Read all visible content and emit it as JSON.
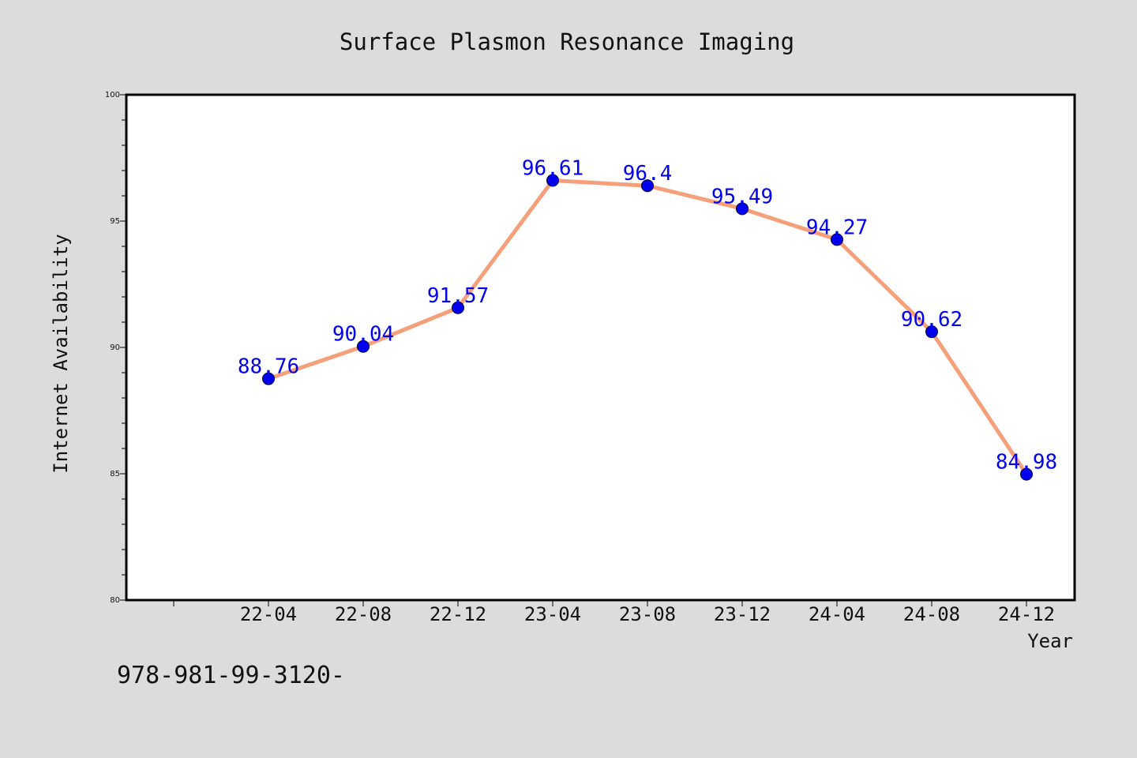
{
  "colors": {
    "background": "#dcdcdc",
    "plot_background": "#ffffff",
    "line": "#f5a07a",
    "marker": "#0000ee",
    "data_label": "#0000ee",
    "axis": "#000000"
  },
  "footnote": "978-981-99-3120-",
  "chart_data": {
    "type": "line",
    "title": "Surface Plasmon Resonance Imaging",
    "xlabel": "Year",
    "ylabel": "Internet Availability",
    "categories": [
      "22-04",
      "22-08",
      "22-12",
      "23-04",
      "23-08",
      "23-12",
      "24-04",
      "24-08",
      "24-12"
    ],
    "series": [
      {
        "values": [
          88.76,
          90.04,
          91.57,
          96.61,
          96.4,
          95.49,
          94.27,
          90.62,
          84.98
        ],
        "labels": [
          "88.76",
          "90.04",
          "91.57",
          "96.61",
          "96.4",
          "95.49",
          "94.27",
          "90.62",
          "84.98"
        ]
      }
    ],
    "ylim": [
      80,
      100
    ],
    "yticks": [
      80,
      85,
      90,
      95,
      100
    ],
    "ytick_labels": [
      "80",
      "85",
      "90",
      "95",
      "100"
    ],
    "grid": false,
    "legend": "none",
    "marker": "circle"
  }
}
